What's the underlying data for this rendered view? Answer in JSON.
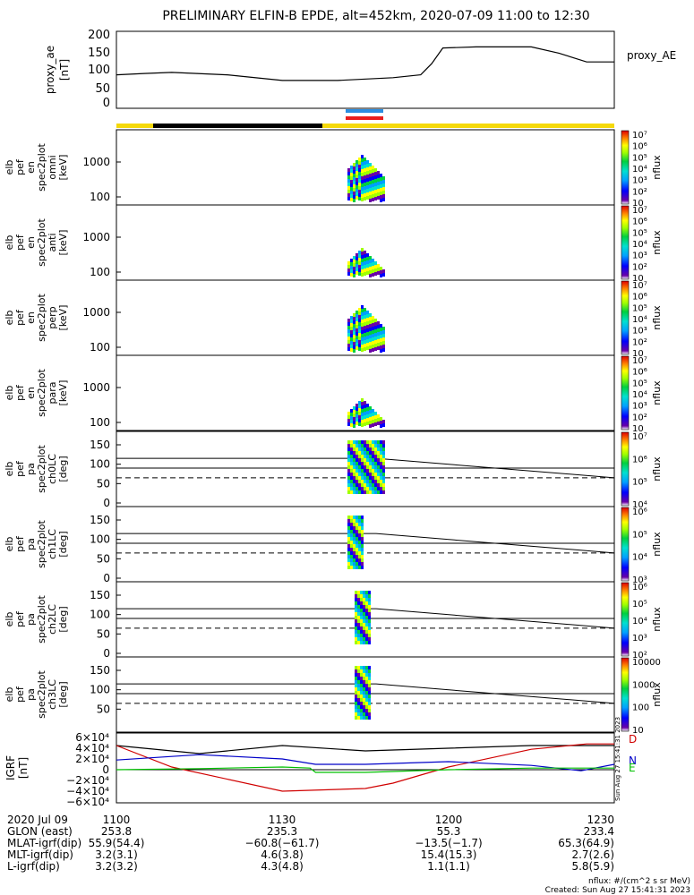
{
  "title": "PRELIMINARY ELFIN-B EPDE, alt=452km, 2020-07-09 11:00 to 12:30",
  "colors": {
    "yellow": "#f5d90a",
    "black": "#000000",
    "blue": "#2b8de0",
    "red": "#e81c1c",
    "igrf_x": "#d00000",
    "igrf_y": "#0000c8",
    "igrf_z": "#00c000"
  },
  "proxy_ae": {
    "ylabel": [
      "proxy_ae",
      "[nT]"
    ],
    "legend": "proxy_AE",
    "yticks": [
      "0",
      "50",
      "100",
      "150",
      "200"
    ],
    "ylim": [
      0,
      210
    ]
  },
  "spectrogram_panels": [
    {
      "lines": [
        "elb",
        "pef",
        "en",
        "spec2plot",
        "omni",
        "[keV]"
      ],
      "yticks": [
        "100",
        "1000"
      ]
    },
    {
      "lines": [
        "elb",
        "pef",
        "en",
        "spec2plot",
        "anti",
        "[keV]"
      ],
      "yticks": [
        "100",
        "1000"
      ]
    },
    {
      "lines": [
        "elb",
        "pef",
        "en",
        "spec2plot",
        "perp",
        "[keV]"
      ],
      "yticks": [
        "100",
        "1000"
      ]
    },
    {
      "lines": [
        "elb",
        "pef",
        "en",
        "spec2plot",
        "para",
        "[keV]"
      ],
      "yticks": [
        "100",
        "1000"
      ]
    },
    {
      "lines": [
        "elb",
        "pef",
        "pa",
        "spec2plot",
        "ch0LC",
        "[deg]"
      ],
      "yticks": [
        "0",
        "50",
        "100",
        "150"
      ]
    },
    {
      "lines": [
        "elb",
        "pef",
        "pa",
        "spec2plot",
        "ch1LC",
        "[deg]"
      ],
      "yticks": [
        "0",
        "50",
        "100",
        "150"
      ]
    },
    {
      "lines": [
        "elb",
        "pef",
        "pa",
        "spec2plot",
        "ch2LC",
        "[deg]"
      ],
      "yticks": [
        "0",
        "50",
        "100",
        "150"
      ]
    },
    {
      "lines": [
        "elb",
        "pef",
        "pa",
        "spec2plot",
        "ch3LC",
        "[deg]"
      ],
      "yticks": [
        "50",
        "100",
        "150"
      ]
    }
  ],
  "colorbars": [
    {
      "label": "nflux",
      "ticks": [
        "10",
        "10²",
        "10³",
        "10⁴",
        "10⁵",
        "10⁶",
        "10⁷"
      ]
    },
    {
      "label": "nflux",
      "ticks": [
        "10",
        "10²",
        "10³",
        "10⁴",
        "10⁵",
        "10⁶",
        "10⁷"
      ]
    },
    {
      "label": "nflux",
      "ticks": [
        "10",
        "10²",
        "10³",
        "10⁴",
        "10⁵",
        "10⁶",
        "10⁷"
      ]
    },
    {
      "label": "nflux",
      "ticks": [
        "10",
        "10²",
        "10³",
        "10⁴",
        "10⁵",
        "10⁶",
        "10⁷"
      ]
    },
    {
      "label": "nflux",
      "ticks": [
        "10⁴",
        "10⁵",
        "10⁶",
        "10⁷"
      ]
    },
    {
      "label": "nflux",
      "ticks": [
        "10³",
        "10⁴",
        "10⁵",
        "10⁶"
      ]
    },
    {
      "label": "nflux",
      "ticks": [
        "10²",
        "10³",
        "10⁴",
        "10⁵",
        "10⁶"
      ]
    },
    {
      "label": "nflux",
      "ticks": [
        "10",
        "100",
        "1000",
        "10000"
      ]
    }
  ],
  "igrf": {
    "ylabel": [
      "IGRF",
      "[nT]"
    ],
    "yticks": [
      "6×10⁴",
      "4×10⁴",
      "2×10⁴",
      "0",
      "−2×10⁴",
      "−4×10⁴",
      "−6×10⁴"
    ],
    "ylim": [
      -65000,
      65000
    ],
    "components": [
      "D",
      "N",
      "E"
    ],
    "side_label": "Sun Aug 27 15:41:31 2023"
  },
  "footer": {
    "rows": [
      {
        "label": "2020 Jul 09",
        "values": [
          "1100",
          "1130",
          "1200",
          "1230"
        ]
      },
      {
        "label": "GLON (east)",
        "values": [
          "253.8",
          "235.3",
          "55.3",
          "233.4"
        ]
      },
      {
        "label": "MLAT-igrf(dip)",
        "values": [
          "55.9(54.4)",
          "−60.8(−61.7)",
          "−13.5(−1.7)",
          "65.3(64.9)"
        ]
      },
      {
        "label": "MLT-igrf(dip)",
        "values": [
          "3.2(3.1)",
          "4.6(3.8)",
          "15.4(15.3)",
          "2.7(2.6)"
        ]
      },
      {
        "label": "L-igrf(dip)",
        "values": [
          "3.2(3.2)",
          "4.3(4.8)",
          "1.1(1.1)",
          "5.8(5.9)"
        ]
      }
    ],
    "note1": "nflux: #/(cm^2 s sr MeV)",
    "note2": "Created: Sun Aug 27 15:41:31 2023"
  },
  "chart_data": [
    {
      "type": "line",
      "title": "PRELIMINARY ELFIN-B EPDE, alt=452km, 2020-07-09 11:00 to 12:30",
      "series": [
        {
          "name": "proxy_AE",
          "x": [
            "11:00",
            "11:05",
            "11:10",
            "11:20",
            "11:30",
            "11:40",
            "11:50",
            "11:55",
            "11:57",
            "11:59",
            "12:05",
            "12:15",
            "12:20",
            "12:25",
            "12:30"
          ],
          "values": [
            88,
            92,
            95,
            88,
            72,
            72,
            80,
            88,
            120,
            165,
            168,
            168,
            150,
            125,
            125
          ]
        }
      ],
      "ylim": [
        0,
        210
      ]
    },
    {
      "type": "line",
      "series": [
        {
          "x": [
            "11:00",
            "11:15",
            "11:30",
            "11:45",
            "12:00",
            "12:15",
            "12:30"
          ],
          "values": [
            45000,
            30000,
            45000,
            35000,
            40000,
            45000,
            45000
          ]
        },
        {
          "x": [
            "11:00",
            "11:10",
            "11:30",
            "11:45",
            "11:50",
            "12:00",
            "12:15",
            "12:25",
            "12:30"
          ],
          "values": [
            45000,
            5000,
            -40000,
            -35000,
            -25000,
            5000,
            38000,
            48000,
            48000
          ]
        },
        {
          "x": [
            "11:00",
            "11:15",
            "11:30",
            "11:36",
            "11:45",
            "12:00",
            "12:15",
            "12:24",
            "12:30"
          ],
          "values": [
            18000,
            28000,
            20000,
            10000,
            10000,
            15000,
            8000,
            -2000,
            10000
          ]
        },
        {
          "x": [
            "11:00",
            "11:15",
            "11:30",
            "11:35",
            "11:36",
            "11:45",
            "12:00",
            "12:15",
            "12:30"
          ],
          "values": [
            0,
            2000,
            5000,
            3000,
            -5000,
            -5000,
            0,
            3000,
            3000
          ]
        }
      ],
      "ylim": [
        -65000,
        65000
      ]
    }
  ]
}
